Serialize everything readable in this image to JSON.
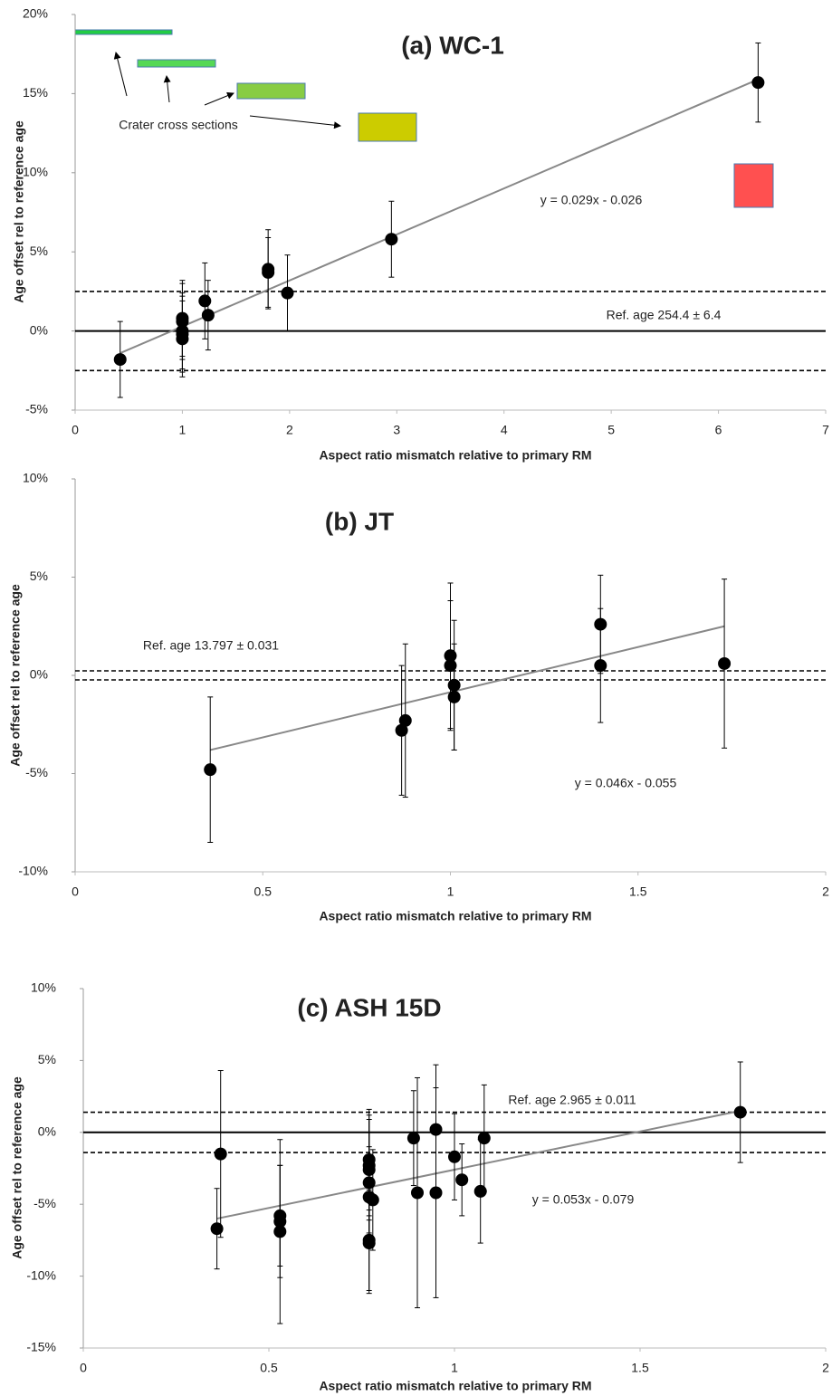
{
  "chart_data": [
    {
      "type": "scatter",
      "title": "(a) WC-1",
      "xlabel": "Aspect ratio mismatch relative to primary RM",
      "ylabel": "Age offset rel to reference age",
      "xlim": [
        0,
        7
      ],
      "xticks": [
        0,
        1,
        2,
        3,
        4,
        5,
        6,
        7
      ],
      "ylim": [
        -5,
        20
      ],
      "yticks": [
        {
          "value": -5,
          "label": "-5%"
        },
        {
          "value": 0,
          "label": "0%"
        },
        {
          "value": 5,
          "label": "5%"
        },
        {
          "value": 10,
          "label": "10%"
        },
        {
          "value": 15,
          "label": "15%"
        },
        {
          "value": 20,
          "label": "20%"
        }
      ],
      "x": [
        0.42,
        1.0,
        1.0,
        1.0,
        1.0,
        1.0,
        1.21,
        1.24,
        1.8,
        1.8,
        1.98,
        2.95,
        6.37
      ],
      "series": [
        {
          "color": "#000000",
          "values": [
            -1.8,
            0.8,
            0.6,
            0,
            -0.2,
            -0.5,
            1.9,
            1.0,
            3.9,
            3.7,
            2.4,
            5.8,
            15.7
          ],
          "errors": [
            2.4,
            2.4,
            2.4,
            2.4,
            2.4,
            2.4,
            2.4,
            2.2,
            2.5,
            2.2,
            2.4,
            2.4,
            2.5
          ]
        }
      ],
      "trendline": {
        "color": "#888888",
        "x": [
          0.42,
          6.37
        ],
        "y": [
          -1.4,
          15.9
        ]
      },
      "hlines": [
        {
          "value": 0,
          "style": "solid"
        },
        {
          "value": 2.5,
          "style": "dashed"
        },
        {
          "value": -2.5,
          "style": "dashed"
        }
      ],
      "annotations": [
        "Ref. age 254.4 ± 6.4",
        "y = 0.029x - 0.026",
        "Crater cross sections"
      ]
    },
    {
      "type": "scatter",
      "title": "(b) JT",
      "xlabel": "Aspect ratio mismatch relative to primary RM",
      "ylabel": "Age offset rel to reference age",
      "xlim": [
        0,
        2
      ],
      "xticks": [
        0,
        0.5,
        1,
        1.5,
        2
      ],
      "ylim": [
        -10,
        10
      ],
      "yticks": [
        {
          "value": -10,
          "label": "-10%"
        },
        {
          "value": -5,
          "label": "-5%"
        },
        {
          "value": 0,
          "label": "0%"
        },
        {
          "value": 5,
          "label": "5%"
        },
        {
          "value": 10,
          "label": "10%"
        }
      ],
      "x": [
        0.36,
        0.87,
        0.88,
        1.0,
        1.0,
        1.01,
        1.01,
        1.4,
        1.4,
        1.73
      ],
      "series": [
        {
          "color": "#000000",
          "values": [
            -4.8,
            -2.8,
            -2.3,
            1.0,
            0.5,
            -0.5,
            -1.1,
            2.6,
            0.5,
            0.6
          ],
          "errors": [
            3.7,
            3.3,
            3.9,
            3.7,
            3.3,
            3.3,
            2.7,
            2.5,
            2.9,
            4.3
          ]
        }
      ],
      "trendline": {
        "color": "#888888",
        "x": [
          0.36,
          1.73
        ],
        "y": [
          -3.8,
          2.5
        ]
      },
      "hlines": [
        {
          "value": 0.23,
          "style": "dashed"
        },
        {
          "value": -0.23,
          "style": "dashed"
        }
      ],
      "annotations": [
        "Ref. age 13.797 ± 0.031",
        "y = 0.046x - 0.055"
      ]
    },
    {
      "type": "scatter",
      "title": "(c) ASH 15D",
      "xlabel": "Aspect ratio mismatch  relative to primary RM",
      "ylabel": "Age offset rel to reference age",
      "xlim": [
        0,
        2
      ],
      "xticks": [
        0,
        0.5,
        1,
        1.5,
        2
      ],
      "ylim": [
        -15,
        10
      ],
      "yticks": [
        {
          "value": -15,
          "label": "-15%"
        },
        {
          "value": -10,
          "label": "-10%"
        },
        {
          "value": -5,
          "label": "-5%"
        },
        {
          "value": 0,
          "label": "0%"
        },
        {
          "value": 5,
          "label": "5%"
        },
        {
          "value": 10,
          "label": "10%"
        }
      ],
      "x": [
        0.36,
        0.37,
        0.53,
        0.53,
        0.53,
        0.77,
        0.77,
        0.77,
        0.77,
        0.77,
        0.78,
        0.77,
        0.77,
        0.89,
        0.9,
        0.95,
        0.95,
        1.0,
        1.02,
        1.07,
        1.08,
        1.77
      ],
      "series": [
        {
          "color": "#000000",
          "values": [
            -6.7,
            -1.5,
            -5.8,
            -6.2,
            -6.9,
            -1.9,
            -2.3,
            -2.6,
            -3.5,
            -4.5,
            -4.7,
            -7.5,
            -7.7,
            -0.4,
            -4.2,
            0.2,
            -4.2,
            -1.7,
            -3.3,
            -4.1,
            -0.4,
            1.4
          ],
          "errors": [
            2.8,
            5.8,
            3.5,
            3.9,
            6.4,
            3.5,
            3.5,
            3.5,
            3.5,
            3.5,
            3.5,
            3.5,
            3.5,
            3.3,
            8.0,
            4.5,
            7.3,
            3.0,
            2.5,
            3.6,
            3.7,
            3.5
          ]
        }
      ],
      "trendline": {
        "color": "#888888",
        "x": [
          0.36,
          1.77
        ],
        "y": [
          -6.0,
          1.5
        ]
      },
      "hlines": [
        {
          "value": 0,
          "style": "solid"
        },
        {
          "value": 1.4,
          "style": "dashed"
        },
        {
          "value": -1.4,
          "style": "dashed"
        }
      ],
      "annotations": [
        "Ref. age 2.965 ± 0.011",
        "y = 0.053x - 0.079"
      ]
    }
  ]
}
